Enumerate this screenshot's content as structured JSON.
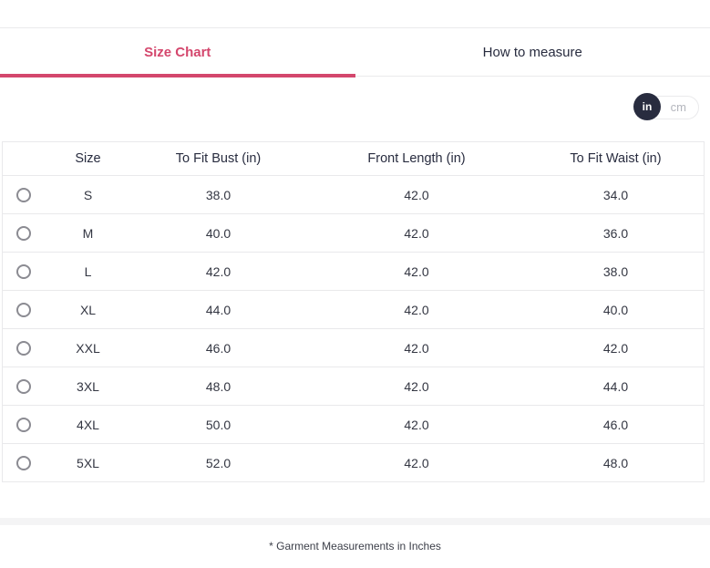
{
  "tabs": {
    "size_chart": "Size Chart",
    "how_to_measure": "How to measure"
  },
  "unit_toggle": {
    "selected": "in",
    "options": [
      "in",
      "cm"
    ]
  },
  "table": {
    "columns": [
      "Size",
      "To Fit Bust (in)",
      "Front Length (in)",
      "To Fit Waist (in)"
    ],
    "rows": [
      [
        "S",
        "38.0",
        "42.0",
        "34.0"
      ],
      [
        "M",
        "40.0",
        "42.0",
        "36.0"
      ],
      [
        "L",
        "42.0",
        "42.0",
        "38.0"
      ],
      [
        "XL",
        "44.0",
        "42.0",
        "40.0"
      ],
      [
        "XXL",
        "46.0",
        "42.0",
        "42.0"
      ],
      [
        "3XL",
        "48.0",
        "42.0",
        "44.0"
      ],
      [
        "4XL",
        "50.0",
        "42.0",
        "46.0"
      ],
      [
        "5XL",
        "52.0",
        "42.0",
        "48.0"
      ]
    ]
  },
  "footer": {
    "note": "* Garment Measurements in Inches"
  },
  "colors": {
    "accent": "#d4476d",
    "dark": "#282c3f",
    "border": "#e9e9eb"
  }
}
